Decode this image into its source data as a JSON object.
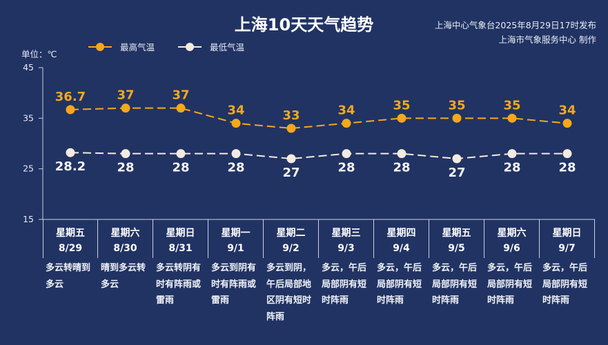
{
  "header": {
    "title": "上海10天天气趋势",
    "issuer_line1": "上海中心气象台2025年8月29日17时发布",
    "issuer_line2": "上海市气象服务中心 制作"
  },
  "legend": {
    "high_label": "最高气温",
    "low_label": "最低气温"
  },
  "unit_label": "单位：℃",
  "colors": {
    "background": "#213363",
    "high": "#f6a81a",
    "low": "#f3ebe0",
    "low_label": "#f5f5f5",
    "axis": "#c9d1e3"
  },
  "days": [
    {
      "weekday": "星期五",
      "date": "8/29",
      "desc": "多云转晴到多云"
    },
    {
      "weekday": "星期六",
      "date": "8/30",
      "desc": "晴到多云转多云"
    },
    {
      "weekday": "星期日",
      "date": "8/31",
      "desc": "多云转阴有时有阵雨或雷雨"
    },
    {
      "weekday": "星期一",
      "date": "9/1",
      "desc": "多云到阴有时有阵雨或雷雨"
    },
    {
      "weekday": "星期二",
      "date": "9/2",
      "desc": "多云到阴，午后局部地区阴有短时阵雨"
    },
    {
      "weekday": "星期三",
      "date": "9/3",
      "desc": "多云，午后局部阴有短时阵雨"
    },
    {
      "weekday": "星期四",
      "date": "9/4",
      "desc": "多云，午后局部阴有短时阵雨"
    },
    {
      "weekday": "星期五",
      "date": "9/5",
      "desc": "多云，午后局部阴有短时阵雨"
    },
    {
      "weekday": "星期六",
      "date": "9/6",
      "desc": "多云，午后局部阴有短时阵雨"
    },
    {
      "weekday": "星期日",
      "date": "9/7",
      "desc": "多云，午后局部阴有短时阵雨"
    }
  ],
  "chart_data": {
    "type": "line",
    "title": "上海10天天气趋势",
    "xlabel": "",
    "ylabel": "单位：℃",
    "ylim": [
      15,
      45
    ],
    "yticks": [
      15,
      25,
      35,
      45
    ],
    "grid": false,
    "legend_position": "top-left",
    "categories": [
      "星期五 8/29",
      "星期六 8/30",
      "星期日 8/31",
      "星期一 9/1",
      "星期二 9/2",
      "星期三 9/3",
      "星期四 9/4",
      "星期五 9/5",
      "星期六 9/6",
      "星期日 9/7"
    ],
    "series": [
      {
        "name": "最高气温",
        "values": [
          36.7,
          37,
          37,
          34,
          33,
          34,
          35,
          35,
          35,
          34
        ],
        "labels": [
          "36.7",
          "37",
          "37",
          "34",
          "33",
          "34",
          "35",
          "35",
          "35",
          "34"
        ],
        "color": "#f6a81a",
        "line_style": "dashed"
      },
      {
        "name": "最低气温",
        "values": [
          28.2,
          28,
          28,
          28,
          27,
          28,
          28,
          27,
          28,
          28
        ],
        "labels": [
          "28.2",
          "28",
          "28",
          "28",
          "27",
          "28",
          "28",
          "27",
          "28",
          "28"
        ],
        "color": "#f3ebe0",
        "line_style": "dashed"
      }
    ]
  }
}
